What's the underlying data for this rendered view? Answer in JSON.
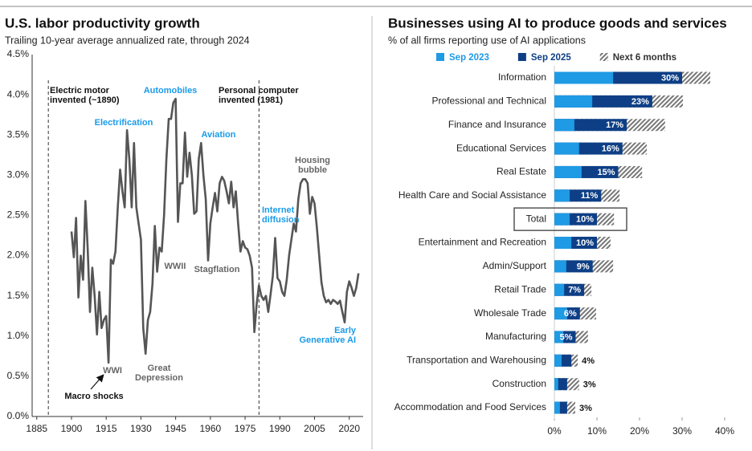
{
  "chart_data": [
    {
      "type": "line",
      "title": "U.S. labor productivity growth",
      "subtitle": "Trailing 10-year average annualized rate, through 2024",
      "color": "#555555",
      "x": [
        1900,
        1901,
        1902,
        1903,
        1904,
        1905,
        1906,
        1907,
        1908,
        1909,
        1910,
        1911,
        1912,
        1913,
        1914,
        1915,
        1916,
        1917,
        1918,
        1919,
        1920,
        1921,
        1922,
        1923,
        1924,
        1925,
        1926,
        1927,
        1928,
        1929,
        1930,
        1931,
        1932,
        1933,
        1934,
        1935,
        1936,
        1937,
        1938,
        1939,
        1940,
        1941,
        1942,
        1943,
        1944,
        1945,
        1946,
        1947,
        1948,
        1949,
        1950,
        1951,
        1952,
        1953,
        1954,
        1955,
        1956,
        1957,
        1958,
        1959,
        1960,
        1961,
        1962,
        1963,
        1964,
        1965,
        1966,
        1967,
        1968,
        1969,
        1970,
        1971,
        1972,
        1973,
        1974,
        1975,
        1976,
        1977,
        1978,
        1979,
        1980,
        1981,
        1982,
        1983,
        1984,
        1985,
        1986,
        1987,
        1988,
        1989,
        1990,
        1991,
        1992,
        1993,
        1994,
        1995,
        1996,
        1997,
        1998,
        1999,
        2000,
        2001,
        2002,
        2003,
        2004,
        2005,
        2006,
        2007,
        2008,
        2009,
        2010,
        2011,
        2012,
        2013,
        2014,
        2015,
        2016,
        2017,
        2018,
        2019,
        2020,
        2021,
        2022,
        2023,
        2024
      ],
      "values": [
        2.3,
        1.98,
        2.47,
        1.48,
        2.0,
        1.7,
        2.68,
        2.1,
        1.3,
        1.85,
        1.5,
        1.02,
        1.55,
        1.1,
        1.2,
        1.25,
        0.67,
        1.95,
        1.9,
        2.05,
        2.6,
        3.07,
        2.8,
        2.6,
        3.56,
        3.2,
        2.6,
        3.4,
        2.6,
        2.4,
        2.2,
        1.1,
        0.78,
        1.2,
        1.3,
        1.65,
        2.37,
        1.8,
        2.1,
        2.05,
        2.5,
        3.2,
        3.7,
        3.7,
        3.9,
        3.95,
        2.42,
        2.9,
        2.9,
        3.53,
        2.98,
        3.28,
        3.0,
        2.52,
        2.55,
        3.2,
        3.4,
        3.0,
        2.7,
        1.94,
        2.4,
        2.6,
        2.78,
        2.55,
        2.9,
        2.98,
        2.93,
        2.8,
        2.65,
        2.92,
        2.6,
        2.8,
        2.4,
        2.05,
        2.18,
        2.1,
        2.08,
        2.0,
        1.85,
        1.05,
        1.4,
        1.63,
        1.5,
        1.45,
        1.5,
        1.3,
        1.52,
        1.75,
        2.22,
        1.72,
        1.68,
        1.55,
        1.5,
        1.7,
        2.0,
        2.2,
        2.4,
        2.3,
        2.7,
        2.9,
        2.95,
        2.95,
        2.9,
        2.52,
        2.73,
        2.65,
        2.35,
        2.0,
        1.67,
        1.5,
        1.42,
        1.45,
        1.4,
        1.45,
        1.43,
        1.4,
        1.44,
        1.3,
        1.17,
        1.55,
        1.68,
        1.6,
        1.5,
        1.6,
        1.78
      ],
      "xlim": [
        1883,
        2026
      ],
      "xticks": [
        1885,
        1900,
        1915,
        1930,
        1945,
        1960,
        1975,
        1990,
        2005,
        2020
      ],
      "ylim": [
        0,
        4.5
      ],
      "yticks": [
        {
          "value": 0,
          "label": "0.0%"
        },
        {
          "value": 0.5,
          "label": "0.5%"
        },
        {
          "value": 1,
          "label": "1.0%"
        },
        {
          "value": 1.5,
          "label": "1.5%"
        },
        {
          "value": 2,
          "label": "2.0%"
        },
        {
          "value": 2.5,
          "label": "2.5%"
        },
        {
          "value": 3,
          "label": "3.0%"
        },
        {
          "value": 3.5,
          "label": "3.5%"
        },
        {
          "value": 4,
          "label": "4.0%"
        },
        {
          "value": 4.5,
          "label": "4.5%"
        }
      ],
      "grid": false,
      "reference_lines": [
        1890,
        1981
      ],
      "annotations": [
        {
          "lines": [
            "Electric motor",
            "invented (~1890)"
          ],
          "color": "#111111"
        },
        {
          "lines": [
            "Automobiles"
          ],
          "color": "#1a9be8"
        },
        {
          "lines": [
            "Personal computer",
            "invented (1981)"
          ],
          "color": "#111111"
        },
        {
          "lines": [
            "Electrification"
          ],
          "color": "#1a9be8"
        },
        {
          "lines": [
            "Aviation"
          ],
          "color": "#1a9be8"
        },
        {
          "lines": [
            "Housing",
            "bubble"
          ],
          "color": "#666666"
        },
        {
          "lines": [
            "Internet",
            "diffusion"
          ],
          "color": "#1a9be8"
        },
        {
          "lines": [
            "WWII"
          ],
          "color": "#666666"
        },
        {
          "lines": [
            "Stagflation"
          ],
          "color": "#666666"
        },
        {
          "lines": [
            "Early",
            "Generative AI"
          ],
          "color": "#1a9be8"
        },
        {
          "lines": [
            "WWI"
          ],
          "color": "#666666"
        },
        {
          "lines": [
            "Great",
            "Depression"
          ],
          "color": "#666666"
        },
        {
          "lines": [
            "Macro shocks"
          ],
          "color": "#111111"
        }
      ]
    },
    {
      "type": "hbar_overlay",
      "title": "Businesses using AI to produce goods and services",
      "subtitle": "% of all firms reporting use of AI applications",
      "categories": [
        "Information",
        "Professional and Technical",
        "Finance and Insurance",
        "Educational Services",
        "Real Estate",
        "Health Care and Social Assistance",
        "Total",
        "Entertainment and Recreation",
        "Admin/Support",
        "Retail Trade",
        "Wholesale Trade",
        "Manufacturing",
        "Transportation and Warehousing",
        "Construction",
        "Accommodation and Food Services"
      ],
      "series": [
        {
          "name": "Next 6 months",
          "color": "#777777",
          "pattern": "hatch",
          "values": [
            36.6,
            30.2,
            26.0,
            21.7,
            20.6,
            15.3,
            14.0,
            13.2,
            13.8,
            8.7,
            9.8,
            7.9,
            5.5,
            5.8,
            4.9
          ]
        },
        {
          "name": "Sep 2025",
          "color": "#0e3f86",
          "values": [
            30,
            23,
            17,
            16,
            15,
            11,
            10,
            10,
            9,
            7,
            6,
            5,
            4,
            3,
            3
          ],
          "value_labels": [
            "30%",
            "23%",
            "17%",
            "16%",
            "15%",
            "11%",
            "10%",
            "10%",
            "9%",
            "7%",
            "6%",
            "5%",
            "4%",
            "3%",
            "3%"
          ]
        },
        {
          "name": "Sep 2023",
          "color": "#1f9ae5",
          "values": [
            13.8,
            8.9,
            4.7,
            5.8,
            6.4,
            3.6,
            3.6,
            4.0,
            2.8,
            2.3,
            3.0,
            2.1,
            1.7,
            0.9,
            1.3
          ]
        }
      ],
      "legend_order": [
        "Sep 2023",
        "Sep 2025",
        "Next 6 months"
      ],
      "xlim": [
        0,
        40
      ],
      "xticks": [
        {
          "value": 0,
          "label": "0%"
        },
        {
          "value": 10,
          "label": "10%"
        },
        {
          "value": 20,
          "label": "20%"
        },
        {
          "value": 30,
          "label": "30%"
        },
        {
          "value": 40,
          "label": "40%"
        }
      ]
    }
  ]
}
